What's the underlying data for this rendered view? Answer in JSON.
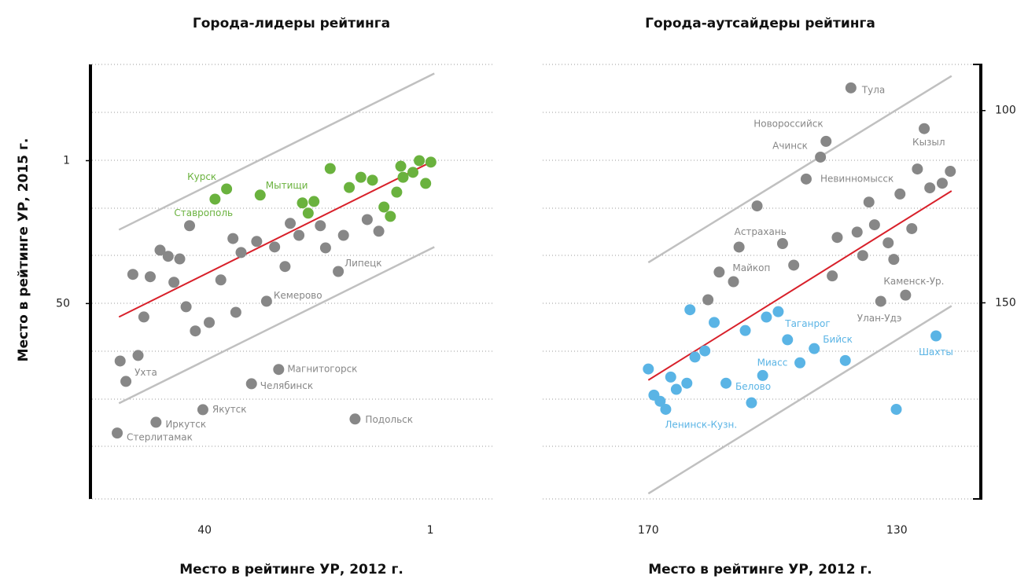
{
  "chart_data": [
    {
      "type": "scatter",
      "title": "Города-лидеры рейтинга",
      "xlabel": "Место в рейтинге УР, 2012 г.",
      "ylabel": "Место в рейтинге УР, 2015 г.",
      "xlim": [
        60,
        -10
      ],
      "ylim": [
        117,
        -32
      ],
      "xticks": [
        40,
        1
      ],
      "yticks": [
        1,
        50
      ],
      "yaxis_side": "left",
      "series": [
        {
          "color": "#878787",
          "x": [
            52.4,
            49.4,
            50.5,
            47.7,
            46.3,
            44.3,
            45.3,
            43.2,
            42.6,
            41.6,
            39.2,
            37.2,
            35.1,
            33.7,
            34.6,
            31.0,
            27.9,
            26.1,
            25.2,
            23.7,
            20.0,
            19.1,
            16.0,
            11.9,
            9.9,
            54.6,
            51.5,
            53.6,
            55.1,
            48.4,
            40.3,
            31.9,
            27.2,
            14.0,
            29.3,
            16.9
          ],
          "y": [
            40.0,
            40.8,
            54.6,
            31.7,
            33.8,
            34.7,
            42.7,
            51.1,
            23.3,
            59.4,
            56.5,
            41.9,
            27.7,
            32.5,
            53.0,
            28.7,
            30.6,
            37.3,
            22.5,
            26.6,
            23.3,
            30.9,
            26.6,
            21.2,
            25.2,
            69.7,
            67.8,
            76.7,
            94.4,
            90.7,
            86.4,
            77.5,
            72.6,
            89.6,
            49.2,
            39.0
          ],
          "labels": [
            null,
            null,
            null,
            null,
            null,
            null,
            null,
            null,
            null,
            null,
            null,
            null,
            null,
            null,
            null,
            null,
            null,
            null,
            null,
            null,
            null,
            null,
            null,
            null,
            null,
            null,
            null,
            "Ухта",
            "Стерлитамак",
            "Иркутск",
            "Якутск",
            "Челябинск",
            "Магнитогорск",
            "Подольск",
            "Кемерово",
            "Липецк"
          ]
        },
        {
          "color": "#6ab23e",
          "x": [
            38.2,
            36.2,
            30.4,
            23.1,
            21.1,
            22.1,
            18.3,
            15.0,
            13.0,
            11.0,
            9.0,
            7.9,
            6.8,
            6.1,
            5.7,
            4.0,
            2.9,
            1.8,
            0.9
          ],
          "y": [
            14.2,
            10.7,
            12.8,
            15.5,
            15.0,
            19.0,
            3.7,
            10.2,
            6.7,
            7.7,
            16.9,
            20.1,
            11.8,
            2.9,
            6.7,
            5.0,
            1.0,
            8.8,
            1.5
          ],
          "labels": [
            "Ставрополь",
            "Курск",
            "Мытищи",
            null,
            null,
            null,
            null,
            null,
            null,
            null,
            null,
            null,
            null,
            null,
            null,
            null,
            null,
            null,
            null
          ]
        }
      ],
      "lines": [
        {
          "color": "#c0c0c0",
          "x": [
            54.8,
            0.3
          ],
          "y": [
            24.7,
            -28.9
          ]
        },
        {
          "color": "#c0c0c0",
          "x": [
            54.8,
            0.3
          ],
          "y": [
            84.2,
            30.6
          ]
        },
        {
          "color": "#d8202a",
          "x": [
            54.8,
            0.9
          ],
          "y": [
            54.6,
            1.5
          ]
        }
      ]
    },
    {
      "type": "scatter",
      "title": "Города-аутсайдеры рейтинга",
      "xlabel": "Место в рейтинге УР, 2012 г.",
      "xlim": [
        187,
        117
      ],
      "ylim": [
        201,
        88
      ],
      "xticks": [
        170,
        130
      ],
      "yticks": [
        100,
        150
      ],
      "yaxis_side": "right",
      "series": [
        {
          "color": "#878787",
          "x": [
            137.4,
            141.4,
            142.3,
            125.6,
            144.6,
            155.4,
            158.6,
            128.6,
            132.6,
            148.4,
            152.5,
            146.6,
            140.4,
            139.6,
            136.4,
            135.5,
            134.5,
            133.6,
            131.4,
            130.5,
            129.5,
            127.6,
            126.7,
            124.7,
            122.7,
            121.4,
            160.4,
            156.3
          ],
          "y": [
            94.1,
            108.0,
            112.1,
            104.7,
            117.8,
            135.5,
            142.0,
            148.0,
            149.6,
            134.6,
            124.8,
            140.2,
            143.0,
            133.0,
            131.6,
            137.7,
            123.8,
            129.7,
            134.4,
            138.7,
            121.7,
            130.7,
            115.2,
            120.1,
            118.9,
            115.8,
            149.2,
            144.5
          ],
          "labels": [
            "Тула",
            "Новороссийск",
            "Ачинск",
            "Кызыл",
            "Невинномысск",
            "Астрахань",
            "Майкоп",
            "Каменск-Ур.",
            "Улан-Удэ",
            null,
            null,
            null,
            null,
            null,
            null,
            null,
            null,
            null,
            null,
            null,
            null,
            null,
            null,
            null,
            null,
            null,
            null,
            null
          ]
        },
        {
          "color": "#5ab4e5",
          "x": [
            170,
            169.1,
            168.1,
            167.2,
            166.4,
            165.5,
            163.8,
            163.3,
            162.5,
            160.9,
            159.4,
            157.5,
            154.4,
            153.4,
            151.6,
            151.0,
            149.1,
            147.6,
            145.6,
            143.3,
            138.3,
            123.7,
            130.1
          ],
          "y": [
            167.2,
            174.0,
            175.6,
            177.7,
            169.3,
            172.5,
            170.9,
            151.8,
            164.1,
            162.5,
            155.1,
            170.9,
            157.2,
            176.0,
            168.9,
            153.7,
            152.3,
            159.6,
            165.6,
            161.9,
            165.0,
            158.6,
            177.7
          ],
          "labels": [
            null,
            null,
            null,
            "Ленинск-Кузн.",
            null,
            null,
            null,
            null,
            null,
            null,
            null,
            "Белово",
            null,
            null,
            "Миасс",
            null,
            null,
            "Таганрог",
            null,
            "Бийск",
            null,
            "Шахты",
            null
          ]
        }
      ],
      "lines": [
        {
          "color": "#c0c0c0",
          "x": [
            170,
            121.2
          ],
          "y": [
            139.5,
            91.0
          ]
        },
        {
          "color": "#c0c0c0",
          "x": [
            170,
            121.2
          ],
          "y": [
            199.6,
            150.8
          ]
        },
        {
          "color": "#d8202a",
          "x": [
            170,
            121.2
          ],
          "y": [
            170.1,
            120.9
          ]
        }
      ]
    }
  ]
}
